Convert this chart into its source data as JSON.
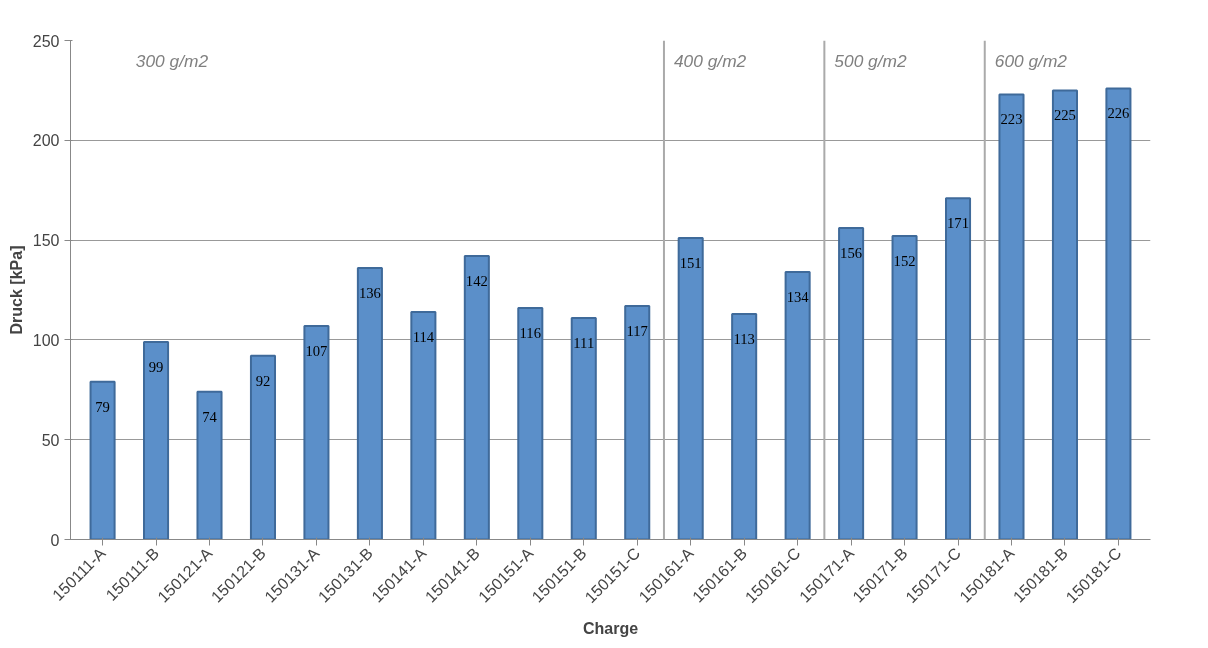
{
  "chart_data": {
    "type": "bar",
    "xlabel": "Charge",
    "ylabel": "Druck [kPa]",
    "categories": [
      "150111-A",
      "150111-B",
      "150121-A",
      "150121-B",
      "150131-A",
      "150131-B",
      "150141-A",
      "150141-B",
      "150151-A",
      "150151-B",
      "150151-C",
      "150161-A",
      "150161-B",
      "150161-C",
      "150171-A",
      "150171-B",
      "150171-C",
      "150181-A",
      "150181-B",
      "150181-C"
    ],
    "values": [
      79,
      99,
      74,
      92,
      107,
      136,
      114,
      142,
      116,
      111,
      117,
      151,
      113,
      134,
      156,
      152,
      171,
      223,
      225,
      226
    ],
    "color": "#5b8fc9",
    "data_labels": true,
    "ylim": [
      0,
      250
    ],
    "yticks": [
      0,
      50,
      100,
      150,
      200,
      250
    ],
    "grid": "y",
    "annotations": [
      "300 g/m2",
      "400 g/m2",
      "500 g/m2",
      "600 g/m2"
    ]
  }
}
